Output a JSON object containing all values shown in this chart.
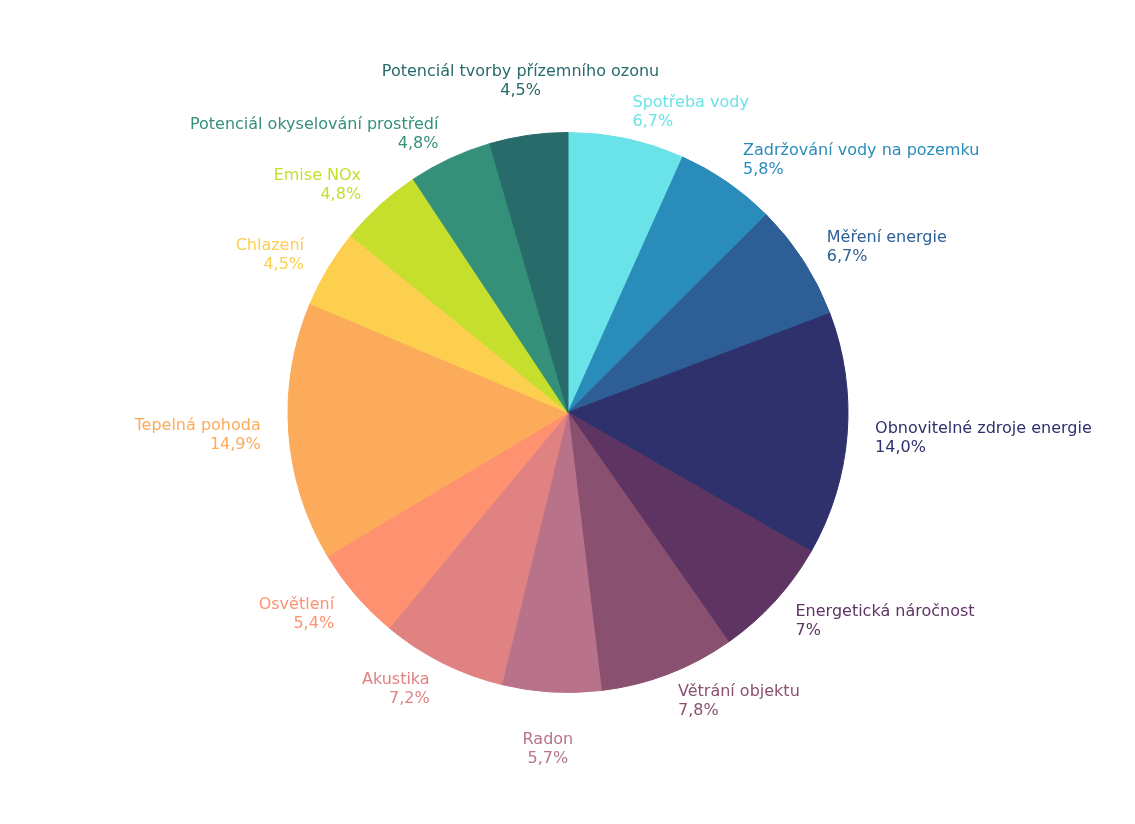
{
  "chart_data": {
    "type": "pie",
    "categories": [
      "Spotřeba vody",
      "Zadržování vody na pozemku",
      "Měření energie",
      "Obnovitelné zdroje energie",
      "Energetická náročnost",
      "Větrání objektu",
      "Radon",
      "Akustika",
      "Osvětlení",
      "Tepelná pohoda",
      "Chlazení",
      "Emise NOx",
      "Potenciál okyselování prostředí",
      "Potenciál tvorby přízemního ozonu"
    ],
    "values": [
      6.7,
      5.8,
      6.7,
      14.0,
      7,
      7.8,
      5.7,
      7.2,
      5.4,
      14.9,
      4.5,
      4.8,
      4.8,
      4.5
    ],
    "value_labels": [
      "6,7%",
      "5,8%",
      "6,7%",
      "14,0%",
      "7%",
      "7,8%",
      "5,7%",
      "7,2%",
      "5,4%",
      "14,9%",
      "4,5%",
      "4,8%",
      "4,8%",
      "4,5%"
    ],
    "colors": [
      "#6ae3e8",
      "#2a8cba",
      "#2d5f96",
      "#2e316b",
      "#5e3463",
      "#8a5070",
      "#b8728a",
      "#e08282",
      "#fe9270",
      "#fcab5a",
      "#fdcf4f",
      "#c6de2c",
      "#359079",
      "#286b6b"
    ]
  }
}
